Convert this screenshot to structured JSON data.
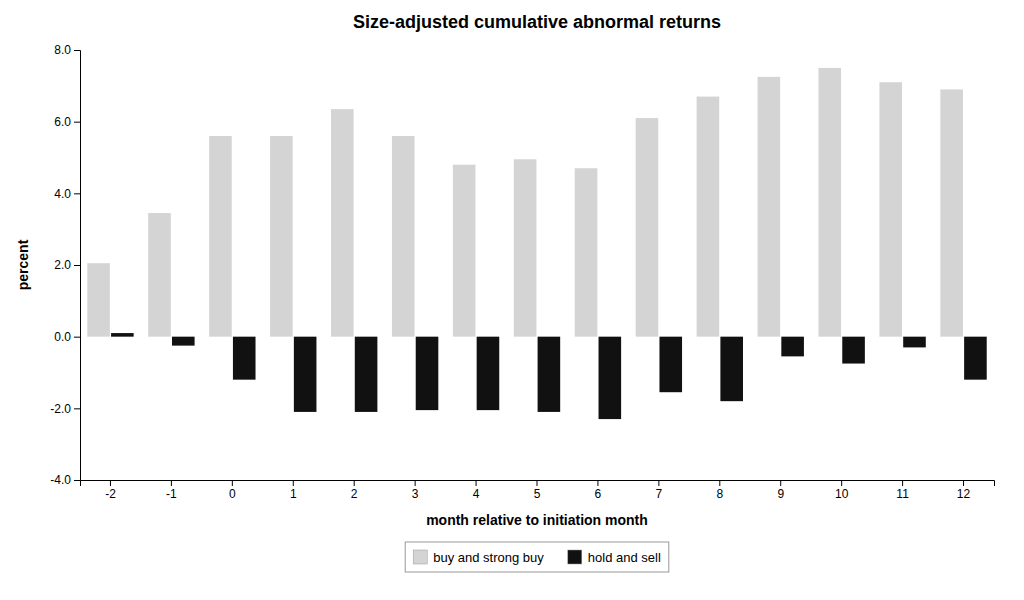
{
  "chart_data": {
    "type": "bar",
    "title": "Size-adjusted cumulative abnormal returns",
    "xlabel": "month relative to initiation month",
    "ylabel": "percent",
    "categories": [
      "-2",
      "-1",
      "0",
      "1",
      "2",
      "3",
      "4",
      "5",
      "6",
      "7",
      "8",
      "9",
      "10",
      "11",
      "12"
    ],
    "series": [
      {
        "name": "buy and strong buy",
        "color": "#d4d4d4",
        "values": [
          2.05,
          3.45,
          5.6,
          5.6,
          6.35,
          5.6,
          4.8,
          4.95,
          4.7,
          6.1,
          6.7,
          7.25,
          7.5,
          7.1,
          6.9
        ]
      },
      {
        "name": "hold and sell",
        "color": "#111111",
        "values": [
          0.1,
          -0.25,
          -1.2,
          -2.1,
          -2.1,
          -2.05,
          -2.05,
          -2.1,
          -2.3,
          -1.55,
          -1.8,
          -0.55,
          -0.75,
          -0.3,
          -1.2
        ]
      }
    ],
    "ylim": [
      -4.0,
      8.0
    ],
    "yticks": [
      {
        "value": -4.0,
        "label": "-4.0"
      },
      {
        "value": -2.0,
        "label": "-2.0"
      },
      {
        "value": 0.0,
        "label": "0.0"
      },
      {
        "value": 2.0,
        "label": "2.0"
      },
      {
        "value": 4.0,
        "label": "4.0"
      },
      {
        "value": 6.0,
        "label": "6.0"
      },
      {
        "value": 8.0,
        "label": "8.0"
      }
    ],
    "grid": false,
    "legend": "bottom"
  }
}
